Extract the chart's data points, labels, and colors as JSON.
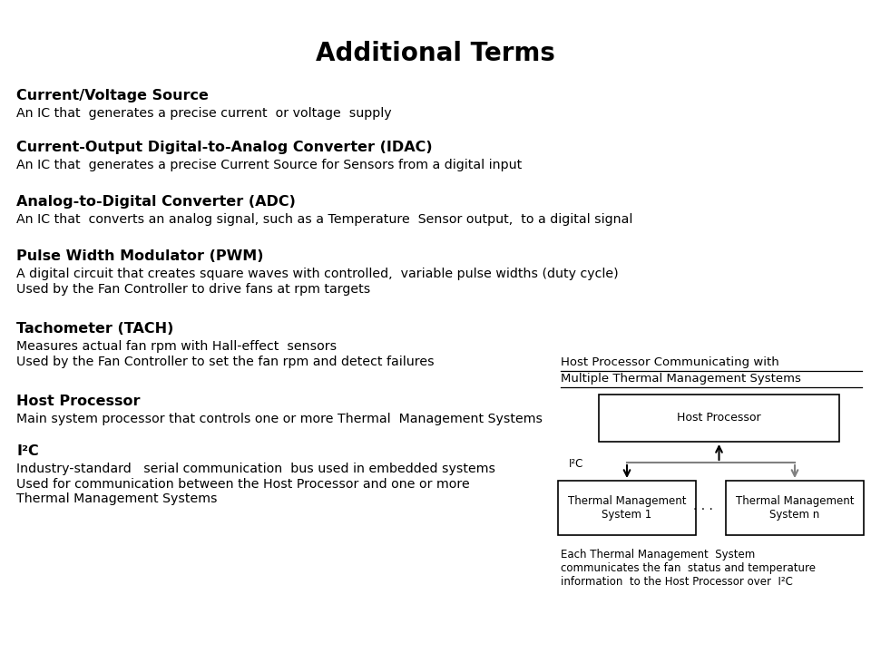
{
  "title": "Additional Terms",
  "bg_color": "#ffffff",
  "text_color": "#000000",
  "terms": [
    {
      "heading": "Current/Voltage Source",
      "body": "An IC that  generates a precise current  or voltage  supply",
      "body2": ""
    },
    {
      "heading": "Current-Output Digital-to-Analog Converter (IDAC)",
      "body": "An IC that  generates a precise Current Source for Sensors from a digital input",
      "body2": ""
    },
    {
      "heading": "Analog-to-Digital Converter (ADC)",
      "body": "An IC that  converts an analog signal, such as a Temperature  Sensor output,  to a digital signal",
      "body2": ""
    },
    {
      "heading": "Pulse Width Modulator (PWM)",
      "body": "A digital circuit that creates square waves with controlled,  variable pulse widths (duty cycle)",
      "body2": "Used by the Fan Controller to drive fans at rpm targets"
    },
    {
      "heading": "Tachometer (TACH)",
      "body": "Measures actual fan rpm with Hall-effect  sensors",
      "body2": "Used by the Fan Controller to set the fan rpm and detect failures"
    },
    {
      "heading": "Host Processor",
      "body": "Main system processor that controls one or more Thermal  Management Systems",
      "body2": ""
    },
    {
      "heading": "I²C",
      "body": "Industry-standard   serial communication  bus used in embedded systems",
      "body2": "Used for communication between the Host Processor and one or more\nThermal Management Systems"
    }
  ],
  "diagram_title_line1": "Host Processor Communicating with",
  "diagram_title_line2": "Multiple Thermal Management Systems",
  "caption_line1": "Each Thermal Management  System",
  "caption_line2": "communicates the fan  status and temperature",
  "caption_line3": "information  to the Host Processor over  I²C"
}
